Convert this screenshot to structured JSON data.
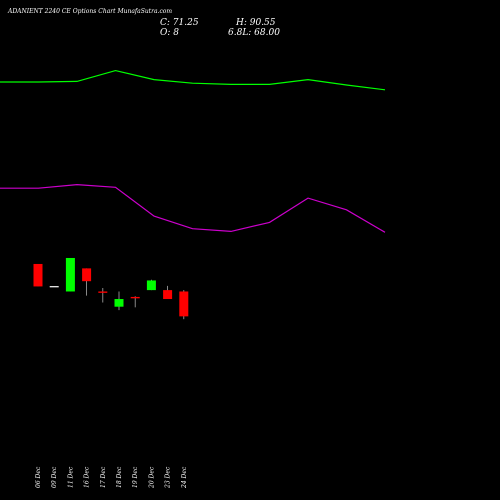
{
  "header": {
    "title": "ADANIENT 2240  CE Options  Chart MunafaSutra.com",
    "close_label": "C: 71.25",
    "high_label": "H: 90.55",
    "open_label": "O: 8",
    "low_label": "6.8L: 68.00"
  },
  "colors": {
    "background": "#000000",
    "upper_line": "#00ff00",
    "lower_line": "#cc00cc",
    "up_candle": "#00ff00",
    "down_candle": "#ff0000",
    "neutral_candle": "#ffffff",
    "wick": "#aaaaaa",
    "text": "#ffffff"
  },
  "chart_data": {
    "type": "candlestick",
    "categories": [
      "06 Dec",
      "09 Dec",
      "11 Dec",
      "16 Dec",
      "17 Dec",
      "18 Dec",
      "19 Dec",
      "20 Dec",
      "23 Dec",
      "24 Dec"
    ],
    "candles": [
      {
        "o": 86.7,
        "h": 86.7,
        "l": 65.3,
        "c": 65.3,
        "dir": "down"
      },
      {
        "o": 65.6,
        "h": 65.6,
        "l": 65.6,
        "c": 65.6,
        "dir": "flat"
      },
      {
        "o": 60.5,
        "h": 92.4,
        "l": 60.5,
        "c": 92.4,
        "dir": "up"
      },
      {
        "o": 82.5,
        "h": 82.5,
        "l": 56.6,
        "c": 70.3,
        "dir": "down"
      },
      {
        "o": 60.5,
        "h": 63.8,
        "l": 50.0,
        "c": 59.2,
        "dir": "down"
      },
      {
        "o": 46.0,
        "h": 60.5,
        "l": 42.7,
        "c": 53.3,
        "dir": "up"
      },
      {
        "o": 55.3,
        "h": 55.9,
        "l": 45.4,
        "c": 54.0,
        "dir": "down"
      },
      {
        "o": 61.8,
        "h": 71.7,
        "l": 61.8,
        "c": 71.0,
        "dir": "up"
      },
      {
        "o": 61.8,
        "h": 65.8,
        "l": 53.3,
        "c": 53.3,
        "dir": "down"
      },
      {
        "o": 60.5,
        "h": 61.8,
        "l": 34.1,
        "c": 36.8,
        "dir": "down"
      }
    ],
    "upper_line": [
      80,
      80,
      81,
      99,
      84,
      78,
      76,
      76,
      84,
      75,
      67
    ],
    "lower_line": [
      52,
      52,
      56,
      53,
      21,
      7,
      4,
      14,
      41,
      28,
      3
    ],
    "grid": false,
    "legend": "none"
  }
}
